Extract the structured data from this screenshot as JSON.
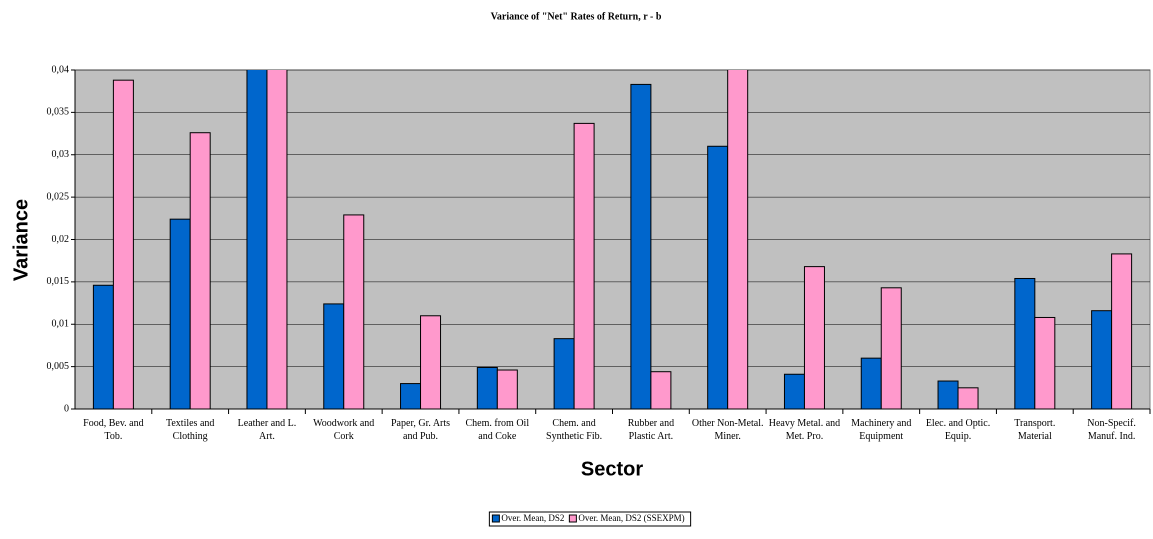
{
  "chart_data": {
    "type": "bar",
    "title": "Variance of \"Net\" Rates of Return, r - b",
    "y_label": "Variance",
    "x_label": "Sector",
    "categories": [
      "Food, Bev. and Tob.",
      "Textiles and Clothing",
      "Leather and L. Art.",
      "Woodwork and Cork",
      "Paper, Gr. Arts and Pub.",
      "Chem. from Oil and Coke",
      "Chem. and Synthetic Fib.",
      "Rubber and Plastic Art.",
      "Other Non-Metal. Miner.",
      "Heavy Metal. and Met. Pro.",
      "Machinery and Equipment",
      "Elec. and Optic. Equip.",
      "Transport. Material",
      "Non-Specif. Manuf. Ind."
    ],
    "series": [
      {
        "name": "Over. Mean, DS2",
        "color": "#0066cc",
        "values": [
          0.0146,
          0.0224,
          0.041,
          0.0124,
          0.003,
          0.0049,
          0.0083,
          0.0383,
          0.031,
          0.0041,
          0.006,
          0.0033,
          0.0154,
          0.0116
        ]
      },
      {
        "name": "Over. Mean, DS2 (SSEXPM)",
        "color": "#ff99cc",
        "values": [
          0.0388,
          0.0326,
          0.041,
          0.0229,
          0.011,
          0.0046,
          0.0337,
          0.0044,
          0.041,
          0.0168,
          0.0143,
          0.0025,
          0.0108,
          0.0183
        ]
      }
    ],
    "ylim": [
      0,
      0.04
    ],
    "yticks": [
      0,
      {
        "value": 0.005,
        "label": "0,005"
      },
      {
        "value": 0.01,
        "label": "0,01"
      },
      {
        "value": 0.015,
        "label": "0,015"
      },
      {
        "value": 0.02,
        "label": "0,02"
      },
      {
        "value": 0.025,
        "label": "0,025"
      },
      {
        "value": 0.03,
        "label": "0,03"
      },
      {
        "value": 0.035,
        "label": "0,035"
      },
      {
        "value": 0.04,
        "label": "0,04"
      }
    ],
    "grid": true,
    "plot_background": "#c0c0c0"
  }
}
